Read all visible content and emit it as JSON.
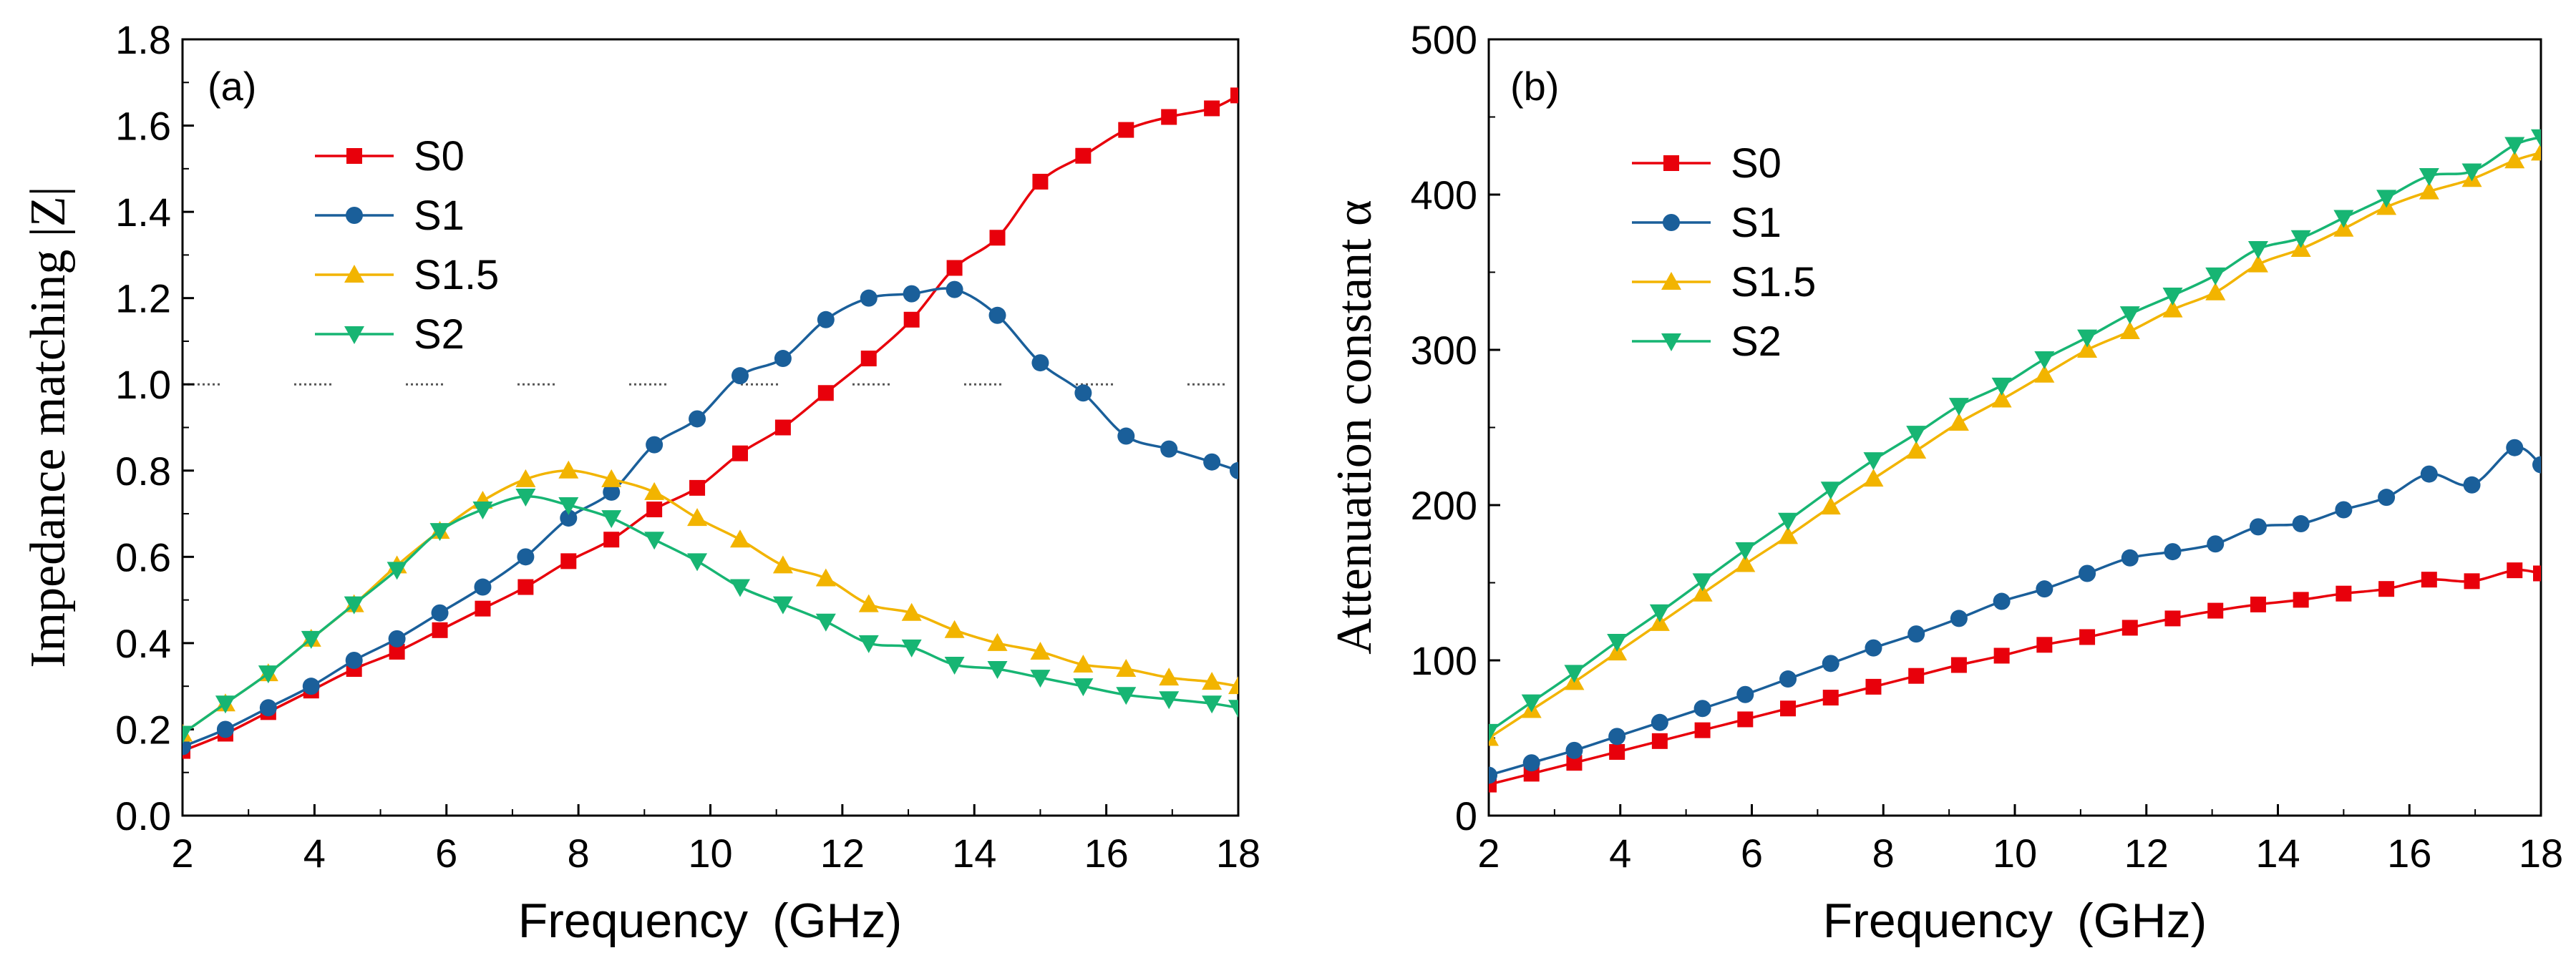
{
  "colors": {
    "S0": "#e8000b",
    "S1": "#1a5f9a",
    "S1.5": "#f2b400",
    "S2": "#17b573",
    "axis": "#000000",
    "reference": "#555555"
  },
  "chart_data": [
    {
      "type": "line",
      "panel_label": "(a)",
      "title": "",
      "xlabel": "Frequency (GHz)",
      "ylabel": "Impedance matching |Z|",
      "xlim": [
        2,
        18
      ],
      "ylim": [
        0.0,
        1.8
      ],
      "xticks": [
        "2",
        "4",
        "6",
        "8",
        "10",
        "12",
        "14",
        "16",
        "18"
      ],
      "yticks": [
        "0.0",
        "0.2",
        "0.4",
        "0.6",
        "0.8",
        "1.0",
        "1.2",
        "1.4",
        "1.6",
        "1.8"
      ],
      "legend_position": "upper-left",
      "reference_line": {
        "y": 1.0,
        "style": "dotted"
      },
      "series": [
        {
          "name": "S0",
          "marker": "square",
          "x": [
            2.0,
            2.65,
            3.3,
            3.95,
            4.6,
            5.25,
            5.9,
            6.55,
            7.2,
            7.85,
            8.5,
            9.15,
            9.8,
            10.45,
            11.1,
            11.75,
            12.4,
            13.05,
            13.7,
            14.35,
            15.0,
            15.65,
            16.3,
            16.95,
            17.6,
            18.0
          ],
          "y": [
            0.15,
            0.19,
            0.24,
            0.29,
            0.34,
            0.38,
            0.43,
            0.48,
            0.53,
            0.59,
            0.64,
            0.71,
            0.76,
            0.84,
            0.9,
            0.98,
            1.06,
            1.15,
            1.27,
            1.34,
            1.47,
            1.53,
            1.59,
            1.62,
            1.64,
            1.67
          ]
        },
        {
          "name": "S1",
          "marker": "circle",
          "x": [
            2.0,
            2.65,
            3.3,
            3.95,
            4.6,
            5.25,
            5.9,
            6.55,
            7.2,
            7.85,
            8.5,
            9.15,
            9.8,
            10.45,
            11.1,
            11.75,
            12.4,
            13.05,
            13.7,
            14.35,
            15.0,
            15.65,
            16.3,
            16.95,
            17.6,
            18.0
          ],
          "y": [
            0.16,
            0.2,
            0.25,
            0.3,
            0.36,
            0.41,
            0.47,
            0.53,
            0.6,
            0.69,
            0.75,
            0.86,
            0.92,
            1.02,
            1.06,
            1.15,
            1.2,
            1.21,
            1.22,
            1.16,
            1.05,
            0.98,
            0.88,
            0.85,
            0.82,
            0.8
          ]
        },
        {
          "name": "S1.5",
          "marker": "triangle-up",
          "x": [
            2.0,
            2.65,
            3.3,
            3.95,
            4.6,
            5.25,
            5.9,
            6.55,
            7.2,
            7.85,
            8.5,
            9.15,
            9.8,
            10.45,
            11.1,
            11.75,
            12.4,
            13.05,
            13.7,
            14.35,
            15.0,
            15.65,
            16.3,
            16.95,
            17.6,
            18.0
          ],
          "y": [
            0.19,
            0.26,
            0.33,
            0.41,
            0.49,
            0.58,
            0.66,
            0.73,
            0.78,
            0.8,
            0.78,
            0.75,
            0.69,
            0.64,
            0.58,
            0.55,
            0.49,
            0.47,
            0.43,
            0.4,
            0.38,
            0.35,
            0.34,
            0.32,
            0.31,
            0.3
          ]
        },
        {
          "name": "S2",
          "marker": "triangle-down",
          "x": [
            2.0,
            2.65,
            3.3,
            3.95,
            4.6,
            5.25,
            5.9,
            6.55,
            7.2,
            7.85,
            8.5,
            9.15,
            9.8,
            10.45,
            11.1,
            11.75,
            12.4,
            13.05,
            13.7,
            14.35,
            15.0,
            15.65,
            16.3,
            16.95,
            17.6,
            18.0
          ],
          "y": [
            0.19,
            0.26,
            0.33,
            0.41,
            0.49,
            0.57,
            0.66,
            0.71,
            0.74,
            0.72,
            0.69,
            0.64,
            0.59,
            0.53,
            0.49,
            0.45,
            0.4,
            0.39,
            0.35,
            0.34,
            0.32,
            0.3,
            0.28,
            0.27,
            0.26,
            0.25
          ]
        }
      ]
    },
    {
      "type": "line",
      "panel_label": "(b)",
      "title": "",
      "xlabel": "Frequency (GHz)",
      "ylabel": "Attenuation constant α",
      "xlim": [
        2,
        18
      ],
      "ylim": [
        0,
        500
      ],
      "xticks": [
        "2",
        "4",
        "6",
        "8",
        "10",
        "12",
        "14",
        "16",
        "18"
      ],
      "yticks": [
        "0",
        "100",
        "200",
        "300",
        "400",
        "500"
      ],
      "legend_position": "upper-left",
      "series": [
        {
          "name": "S0",
          "marker": "square",
          "x": [
            2.0,
            2.65,
            3.3,
            3.95,
            4.6,
            5.25,
            5.9,
            6.55,
            7.2,
            7.85,
            8.5,
            9.15,
            9.8,
            10.45,
            11.1,
            11.75,
            12.4,
            13.05,
            13.7,
            14.35,
            15.0,
            15.65,
            16.3,
            16.95,
            17.6,
            18.0
          ],
          "y": [
            20,
            27,
            34,
            41,
            48,
            55,
            62,
            69,
            76,
            83,
            90,
            97,
            103,
            110,
            115,
            121,
            127,
            132,
            136,
            139,
            143,
            146,
            152,
            151,
            158,
            156
          ]
        },
        {
          "name": "S1",
          "marker": "circle",
          "x": [
            2.0,
            2.65,
            3.3,
            3.95,
            4.6,
            5.25,
            5.9,
            6.55,
            7.2,
            7.85,
            8.5,
            9.15,
            9.8,
            10.45,
            11.1,
            11.75,
            12.4,
            13.05,
            13.7,
            14.35,
            15.0,
            15.65,
            16.3,
            16.95,
            17.6,
            18.0
          ],
          "y": [
            26,
            34,
            42,
            51,
            60,
            69,
            78,
            88,
            98,
            108,
            117,
            127,
            138,
            146,
            156,
            166,
            170,
            175,
            186,
            188,
            197,
            205,
            220,
            213,
            237,
            226
          ]
        },
        {
          "name": "S1.5",
          "marker": "triangle-up",
          "x": [
            2.0,
            2.65,
            3.3,
            3.95,
            4.6,
            5.25,
            5.9,
            6.55,
            7.2,
            7.85,
            8.5,
            9.15,
            9.8,
            10.45,
            11.1,
            11.75,
            12.4,
            13.05,
            13.7,
            14.35,
            15.0,
            15.65,
            16.3,
            16.95,
            17.6,
            18.0
          ],
          "y": [
            50,
            68,
            86,
            105,
            124,
            143,
            162,
            180,
            199,
            217,
            235,
            253,
            268,
            284,
            300,
            312,
            326,
            337,
            355,
            365,
            378,
            392,
            402,
            410,
            422,
            427
          ]
        },
        {
          "name": "S2",
          "marker": "triangle-down",
          "x": [
            2.0,
            2.65,
            3.3,
            3.95,
            4.6,
            5.25,
            5.9,
            6.55,
            7.2,
            7.85,
            8.5,
            9.15,
            9.8,
            10.45,
            11.1,
            11.75,
            12.4,
            13.05,
            13.7,
            14.35,
            15.0,
            15.65,
            16.3,
            16.95,
            17.6,
            18.0
          ],
          "y": [
            54,
            73,
            92,
            112,
            131,
            151,
            171,
            190,
            210,
            229,
            246,
            264,
            277,
            294,
            308,
            323,
            335,
            348,
            365,
            372,
            385,
            398,
            412,
            415,
            432,
            437
          ]
        }
      ]
    }
  ]
}
